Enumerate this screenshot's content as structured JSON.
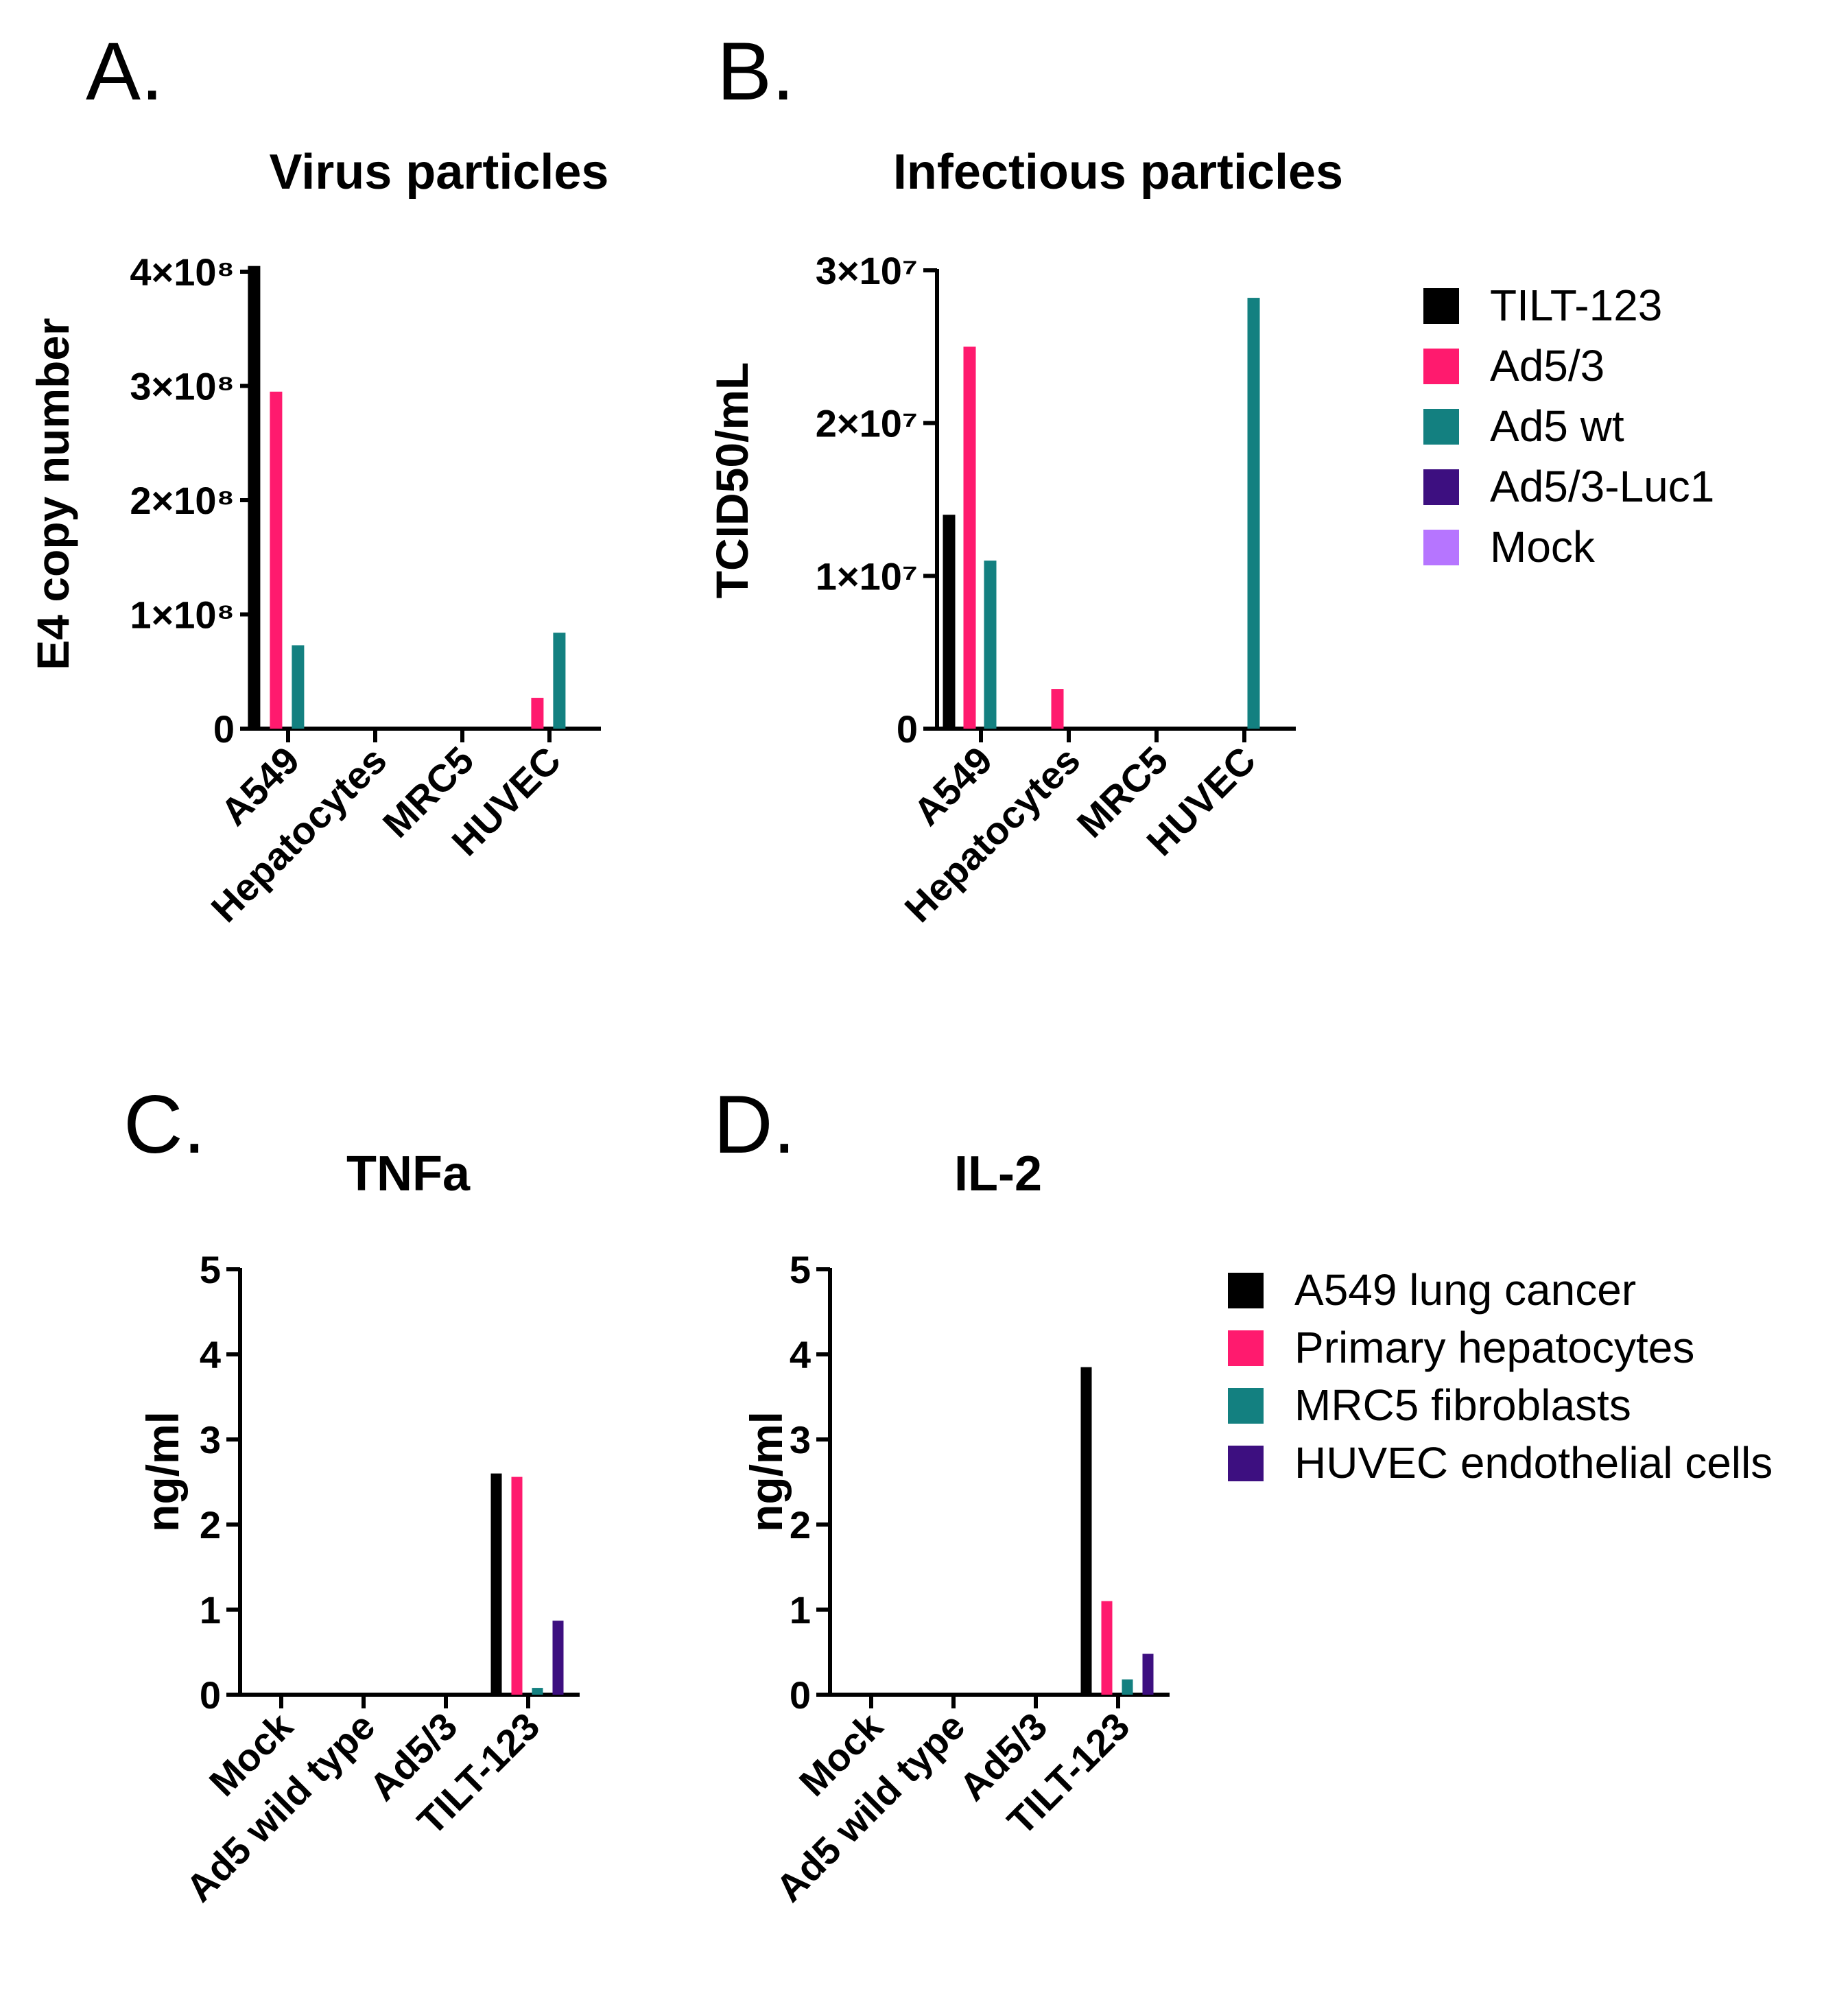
{
  "colors": {
    "TILT-123": "#000000",
    "Ad5/3": "#ff1a6e",
    "Ad5 wt": "#138080",
    "Ad5/3-Luc1": "#3d0f80",
    "Mock": "#b675ff",
    "A549 lung cancer": "#000000",
    "Primary hepatocytes": "#ff1a6e",
    "MRC5 fibroblasts": "#138080",
    "HUVEC endothelial cells": "#3d0f80"
  },
  "legends": [
    {
      "items": [
        "TILT-123",
        "Ad5/3",
        "Ad5 wt",
        "Ad5/3-Luc1",
        "Mock"
      ]
    },
    {
      "items": [
        "A549 lung cancer",
        "Primary hepatocytes",
        "MRC5 fibroblasts",
        "HUVEC endothelial cells"
      ]
    }
  ],
  "chart_data": [
    {
      "panel": "A.",
      "type": "bar",
      "title": "Virus particles",
      "ylabel": "E4 copy number",
      "xlabel": "",
      "ylim": [
        0,
        400000000
      ],
      "yticks": [
        0,
        100000000,
        200000000,
        300000000,
        400000000
      ],
      "ytick_labels": [
        "0",
        "1×10⁸",
        "2×10⁸",
        "3×10⁸",
        "4×10⁸"
      ],
      "categories": [
        "A549",
        "Hepatocytes",
        "MRC5",
        "HUVEC"
      ],
      "series": [
        {
          "name": "TILT-123",
          "values": [
            405000000,
            0,
            0,
            0
          ]
        },
        {
          "name": "Ad5/3",
          "values": [
            295000000,
            0,
            0,
            27000000
          ]
        },
        {
          "name": "Ad5 wt",
          "values": [
            73000000,
            0,
            0,
            84000000
          ]
        },
        {
          "name": "Ad5/3-Luc1",
          "values": [
            0,
            0,
            0,
            0
          ]
        },
        {
          "name": "Mock",
          "values": [
            0,
            0,
            0,
            0
          ]
        }
      ]
    },
    {
      "panel": "B.",
      "type": "bar",
      "title": "Infectious particles",
      "ylabel": "TCID50/mL",
      "xlabel": "",
      "ylim": [
        0,
        30000000
      ],
      "yticks": [
        0,
        10000000,
        20000000,
        30000000
      ],
      "ytick_labels": [
        "0",
        "1×10⁷",
        "2×10⁷",
        "3×10⁷"
      ],
      "categories": [
        "A549",
        "Hepatocytes",
        "MRC5",
        "HUVEC"
      ],
      "series": [
        {
          "name": "TILT-123",
          "values": [
            14000000,
            0,
            0,
            0
          ]
        },
        {
          "name": "Ad5/3",
          "values": [
            25000000,
            2600000,
            0,
            0
          ]
        },
        {
          "name": "Ad5 wt",
          "values": [
            11000000,
            0,
            0,
            28200000
          ]
        },
        {
          "name": "Ad5/3-Luc1",
          "values": [
            0,
            0,
            0,
            0
          ]
        },
        {
          "name": "Mock",
          "values": [
            0,
            0,
            0,
            0
          ]
        }
      ]
    },
    {
      "panel": "C.",
      "type": "bar",
      "title": "TNFa",
      "ylabel": "ng/ml",
      "xlabel": "",
      "ylim": [
        0,
        5
      ],
      "yticks": [
        0,
        1,
        2,
        3,
        4,
        5
      ],
      "ytick_labels": [
        "0",
        "1",
        "2",
        "3",
        "4",
        "5"
      ],
      "categories": [
        "Mock",
        "Ad5 wild type",
        "Ad5/3",
        "TILT-123"
      ],
      "series": [
        {
          "name": "A549 lung cancer",
          "values": [
            0,
            0,
            0,
            2.6
          ]
        },
        {
          "name": "Primary hepatocytes",
          "values": [
            0,
            0,
            0,
            2.56
          ]
        },
        {
          "name": "MRC5 fibroblasts",
          "values": [
            0,
            0,
            0,
            0.08
          ]
        },
        {
          "name": "HUVEC endothelial cells",
          "values": [
            0,
            0,
            0,
            0.87
          ]
        }
      ]
    },
    {
      "panel": "D.",
      "type": "bar",
      "title": "IL-2",
      "ylabel": "ng/ml",
      "xlabel": "",
      "ylim": [
        0,
        5
      ],
      "yticks": [
        0,
        1,
        2,
        3,
        4,
        5
      ],
      "ytick_labels": [
        "0",
        "1",
        "2",
        "3",
        "4",
        "5"
      ],
      "categories": [
        "Mock",
        "Ad5 wild type",
        "Ad5/3",
        "TILT-123"
      ],
      "series": [
        {
          "name": "A549 lung cancer",
          "values": [
            0,
            0,
            0,
            3.85
          ]
        },
        {
          "name": "Primary hepatocytes",
          "values": [
            0,
            0,
            0,
            1.1
          ]
        },
        {
          "name": "MRC5 fibroblasts",
          "values": [
            0,
            0,
            0,
            0.18
          ]
        },
        {
          "name": "HUVEC endothelial cells",
          "values": [
            0,
            0,
            0,
            0.48
          ]
        }
      ]
    }
  ]
}
